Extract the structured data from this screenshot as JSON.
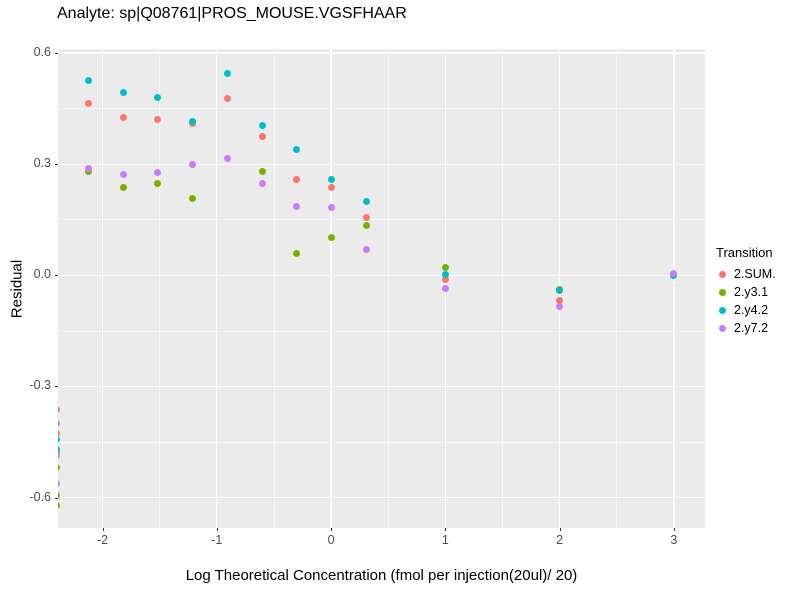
{
  "chart_data": {
    "type": "scatter",
    "title": "Analyte: sp|Q08761|PROS_MOUSE.VGSFHAAR",
    "xlabel": "Log Theoretical Concentration (fmol per injection(20ul)/ 20)",
    "ylabel": "Residual",
    "xlim": [
      -2.39,
      3.273
    ],
    "ylim": [
      -0.682,
      0.611
    ],
    "x_ticks": [
      {
        "v": -2,
        "label": "-2"
      },
      {
        "v": -1,
        "label": "-1"
      },
      {
        "v": 0,
        "label": "0"
      },
      {
        "v": 1,
        "label": "1"
      },
      {
        "v": 2,
        "label": "2"
      },
      {
        "v": 3,
        "label": "3"
      }
    ],
    "y_ticks": [
      {
        "v": 0.6,
        "label": "0.6"
      },
      {
        "v": 0.3,
        "label": "0.3"
      },
      {
        "v": 0.0,
        "label": "0.0"
      },
      {
        "v": -0.3,
        "label": "-0.3"
      },
      {
        "v": -0.6,
        "label": "-0.6"
      }
    ],
    "x_minor": [
      -1.5,
      -0.5,
      0.5,
      1.5,
      2.5
    ],
    "y_minor": [
      0.45,
      0.15,
      -0.15,
      -0.45
    ],
    "grid": "on",
    "legend_position": "right",
    "legend_title": "Transition",
    "panel_background": "#EBEBEB",
    "gridline_color": "#FFFFFF",
    "tick_label_color": "#4D4D4D",
    "series": [
      {
        "name": "2.SUM.",
        "color": "#F8766D",
        "points": [
          [
            -2.4,
            -0.363
          ],
          [
            -2.4,
            -0.428
          ],
          [
            -2.4,
            -0.481
          ],
          [
            -2.12,
            0.465
          ],
          [
            -1.82,
            0.426
          ],
          [
            -1.52,
            0.42
          ],
          [
            -1.21,
            0.409
          ],
          [
            -0.91,
            0.478
          ],
          [
            -0.6,
            0.375
          ],
          [
            -0.3,
            0.26
          ],
          [
            0.0,
            0.238
          ],
          [
            0.31,
            0.157
          ],
          [
            1.0,
            -0.012
          ],
          [
            2.0,
            -0.069
          ]
        ]
      },
      {
        "name": "2.y3.1",
        "color": "#7CAE00",
        "points": [
          [
            -2.4,
            -0.52
          ],
          [
            -2.4,
            -0.595
          ],
          [
            -2.4,
            -0.622
          ],
          [
            -2.12,
            0.279
          ],
          [
            -1.82,
            0.238
          ],
          [
            -1.52,
            0.247
          ],
          [
            -1.21,
            0.207
          ],
          [
            -0.6,
            0.28
          ],
          [
            -0.3,
            0.06
          ],
          [
            0.0,
            0.101
          ],
          [
            0.31,
            0.134
          ],
          [
            1.0,
            0.021
          ],
          [
            2.0,
            -0.038
          ]
        ]
      },
      {
        "name": "2.y4.2",
        "color": "#00BFC4",
        "points": [
          [
            -2.4,
            -0.444
          ],
          [
            -2.4,
            -0.471
          ],
          [
            -2.12,
            0.525
          ],
          [
            -1.82,
            0.494
          ],
          [
            -1.52,
            0.479
          ],
          [
            -1.21,
            0.414
          ],
          [
            -0.91,
            0.544
          ],
          [
            -0.6,
            0.404
          ],
          [
            -0.3,
            0.34
          ],
          [
            0.0,
            0.26
          ],
          [
            0.31,
            0.198
          ],
          [
            1.0,
            0.003
          ],
          [
            2.0,
            -0.042
          ],
          [
            3.0,
            0.0
          ]
        ]
      },
      {
        "name": "2.y7.2",
        "color": "#C77CFF",
        "points": [
          [
            -2.4,
            -0.401
          ],
          [
            -2.4,
            -0.485
          ],
          [
            -2.4,
            -0.561
          ],
          [
            -2.12,
            0.288
          ],
          [
            -1.82,
            0.272
          ],
          [
            -1.52,
            0.278
          ],
          [
            -1.21,
            0.3
          ],
          [
            -0.91,
            0.315
          ],
          [
            -0.6,
            0.248
          ],
          [
            -0.3,
            0.187
          ],
          [
            0.0,
            0.182
          ],
          [
            0.31,
            0.071
          ],
          [
            1.0,
            -0.036
          ],
          [
            2.0,
            -0.085
          ],
          [
            3.0,
            0.006
          ]
        ]
      }
    ]
  }
}
